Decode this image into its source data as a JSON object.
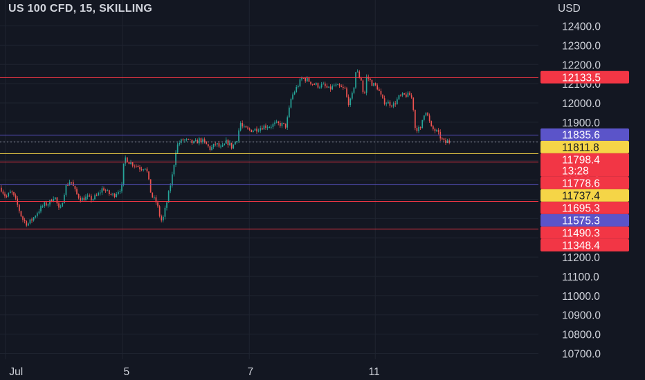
{
  "header": {
    "title": "US 100 CFD, 15, SKILLING",
    "currency": "USD"
  },
  "chart_data": {
    "type": "candlestick",
    "title": "US 100 CFD, 15, SKILLING",
    "ylabel": "USD",
    "ylim": [
      10680,
      12470
    ],
    "y_ticks": [
      12400,
      12300,
      12200,
      12100,
      12000,
      11900,
      11800,
      11700,
      11600,
      11500,
      11400,
      11300,
      11200,
      11100,
      11000,
      10900,
      10800,
      10700
    ],
    "y_tick_labels": [
      "12400.0",
      "12300.0",
      "12200.0",
      "12100.0",
      "12000.0",
      "11900.0",
      "11800.0",
      "11700.0",
      "11600.0",
      "11500.0",
      "11400.0",
      "11300.0",
      "11200.0",
      "11100.0",
      "11000.0",
      "10900.0",
      "10800.0",
      "10700.0"
    ],
    "x_labels": [
      {
        "label": "Jul",
        "pos": 0.03
      },
      {
        "label": "5",
        "pos": 0.235
      },
      {
        "label": "7",
        "pos": 0.465
      },
      {
        "label": "11",
        "pos": 0.695
      }
    ],
    "x_gridlines": [
      0.01,
      0.227,
      0.463,
      0.697
    ],
    "grid": true,
    "colors": {
      "background": "#131722",
      "up": "#26a69a",
      "down": "#ef5350",
      "grid": "#1f2430",
      "red_line": "#f23645",
      "purple_line": "#5b54c9",
      "yellow_line": "#f5d547"
    },
    "price_path": [
      [
        0.0,
        11560
      ],
      [
        0.01,
        11510
      ],
      [
        0.02,
        11540
      ],
      [
        0.03,
        11480
      ],
      [
        0.04,
        11400
      ],
      [
        0.05,
        11370
      ],
      [
        0.06,
        11400
      ],
      [
        0.07,
        11440
      ],
      [
        0.08,
        11470
      ],
      [
        0.09,
        11480
      ],
      [
        0.1,
        11520
      ],
      [
        0.11,
        11430
      ],
      [
        0.12,
        11560
      ],
      [
        0.13,
        11600
      ],
      [
        0.14,
        11530
      ],
      [
        0.15,
        11500
      ],
      [
        0.16,
        11510
      ],
      [
        0.17,
        11500
      ],
      [
        0.18,
        11520
      ],
      [
        0.19,
        11560
      ],
      [
        0.2,
        11530
      ],
      [
        0.21,
        11520
      ],
      [
        0.22,
        11550
      ],
      [
        0.225,
        11560
      ],
      [
        0.23,
        11720
      ],
      [
        0.24,
        11690
      ],
      [
        0.25,
        11680
      ],
      [
        0.26,
        11660
      ],
      [
        0.27,
        11670
      ],
      [
        0.28,
        11520
      ],
      [
        0.29,
        11480
      ],
      [
        0.295,
        11420
      ],
      [
        0.3,
        11380
      ],
      [
        0.31,
        11500
      ],
      [
        0.32,
        11640
      ],
      [
        0.325,
        11750
      ],
      [
        0.33,
        11790
      ],
      [
        0.34,
        11810
      ],
      [
        0.35,
        11800
      ],
      [
        0.36,
        11790
      ],
      [
        0.37,
        11810
      ],
      [
        0.38,
        11790
      ],
      [
        0.39,
        11760
      ],
      [
        0.4,
        11790
      ],
      [
        0.41,
        11760
      ],
      [
        0.42,
        11800
      ],
      [
        0.43,
        11770
      ],
      [
        0.44,
        11820
      ],
      [
        0.445,
        11900
      ],
      [
        0.45,
        11870
      ],
      [
        0.46,
        11860
      ],
      [
        0.47,
        11860
      ],
      [
        0.48,
        11870
      ],
      [
        0.49,
        11880
      ],
      [
        0.5,
        11880
      ],
      [
        0.51,
        11890
      ],
      [
        0.52,
        11890
      ],
      [
        0.53,
        11880
      ],
      [
        0.535,
        11950
      ],
      [
        0.54,
        12030
      ],
      [
        0.55,
        12080
      ],
      [
        0.56,
        12130
      ],
      [
        0.57,
        12120
      ],
      [
        0.58,
        12100
      ],
      [
        0.59,
        12090
      ],
      [
        0.6,
        12090
      ],
      [
        0.61,
        12070
      ],
      [
        0.62,
        12090
      ],
      [
        0.63,
        12080
      ],
      [
        0.64,
        12070
      ],
      [
        0.645,
        12000
      ],
      [
        0.65,
        12010
      ],
      [
        0.655,
        12060
      ],
      [
        0.66,
        12170
      ],
      [
        0.67,
        12120
      ],
      [
        0.675,
        12020
      ],
      [
        0.68,
        12140
      ],
      [
        0.69,
        12100
      ],
      [
        0.7,
        12080
      ],
      [
        0.71,
        12010
      ],
      [
        0.72,
        12000
      ],
      [
        0.73,
        11990
      ],
      [
        0.74,
        12030
      ],
      [
        0.75,
        12040
      ],
      [
        0.76,
        12040
      ],
      [
        0.765,
        12020
      ],
      [
        0.77,
        11870
      ],
      [
        0.78,
        11860
      ],
      [
        0.785,
        11940
      ],
      [
        0.79,
        11960
      ],
      [
        0.8,
        11870
      ],
      [
        0.81,
        11850
      ],
      [
        0.815,
        11830
      ],
      [
        0.82,
        11810
      ],
      [
        0.825,
        11790
      ],
      [
        0.83,
        11800
      ],
      [
        0.835,
        11798
      ]
    ],
    "price_lines": [
      {
        "value": 12133.5,
        "color": "red",
        "label": "12133.5",
        "line": true
      },
      {
        "value": 11835.6,
        "color": "purple",
        "label": "11835.6",
        "line": true
      },
      {
        "value": 11811.8,
        "color": "yellow",
        "label": "11811.8",
        "line": false
      },
      {
        "value": 11798.4,
        "color": "red",
        "label": "11798.4",
        "line": true,
        "dashed": true,
        "countdown": "13:28"
      },
      {
        "value": 11778.6,
        "color": "red",
        "label": "11778.6",
        "line": false
      },
      {
        "value": 11737.4,
        "color": "yellow",
        "label": "11737.4",
        "line": true
      },
      {
        "value": 11695.3,
        "color": "red",
        "label": "11695.3",
        "line": true
      },
      {
        "value": 11575.3,
        "color": "purple",
        "label": "11575.3",
        "line": true
      },
      {
        "value": 11490.3,
        "color": "red",
        "label": "11490.3",
        "line": true
      },
      {
        "value": 11348.4,
        "color": "red",
        "label": "11348.4",
        "line": true
      }
    ]
  }
}
